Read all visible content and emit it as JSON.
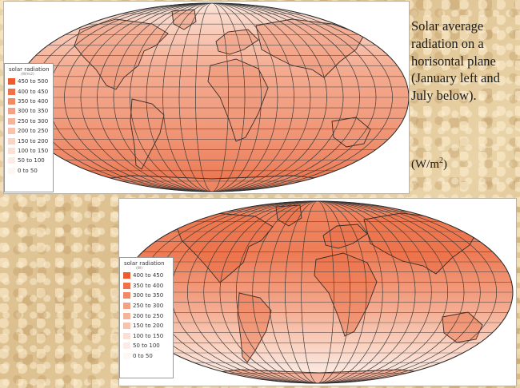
{
  "caption": {
    "text": "Solar average radiation on a horisontal plane (January left and July below).",
    "unit_base": "(W/m",
    "unit_exponent": "2",
    "unit_close": ")"
  },
  "map_top": {
    "month": "January",
    "legend_title": "solar radiation",
    "legend_unit": "(W/m2)",
    "legend_items": [
      {
        "label": "450 to 500",
        "color": "#ea5b2e"
      },
      {
        "label": "400 to 450",
        "color": "#ee7148"
      },
      {
        "label": "350 to 400",
        "color": "#f08a66"
      },
      {
        "label": "300 to 350",
        "color": "#f3a184"
      },
      {
        "label": "250 to 300",
        "color": "#f5b39a"
      },
      {
        "label": "200 to 250",
        "color": "#f7c3ae"
      },
      {
        "label": "150 to 200",
        "color": "#f9d3c3"
      },
      {
        "label": "100 to 150",
        "color": "#fbe0d6"
      },
      {
        "label": "50 to 100",
        "color": "#fdece6"
      },
      {
        "label": "0 to  50",
        "color": "#fef6f2"
      }
    ]
  },
  "map_bottom": {
    "month": "July",
    "legend_title": "solar radiation",
    "legend_unit": "(W)",
    "legend_items": [
      {
        "label": "400 to 450",
        "color": "#ea5b2e"
      },
      {
        "label": "350 to 400",
        "color": "#ee7148"
      },
      {
        "label": "300 to 350",
        "color": "#f08a66"
      },
      {
        "label": "250 to 300",
        "color": "#f3a184"
      },
      {
        "label": "200 to 250",
        "color": "#f5b39a"
      },
      {
        "label": "150 to 200",
        "color": "#f7c3ae"
      },
      {
        "label": "100 to 150",
        "color": "#fae0d5"
      },
      {
        "label": "50 to 100",
        "color": "#fdece6"
      },
      {
        "label": "0 to  50",
        "color": "#fef8f5"
      }
    ]
  }
}
